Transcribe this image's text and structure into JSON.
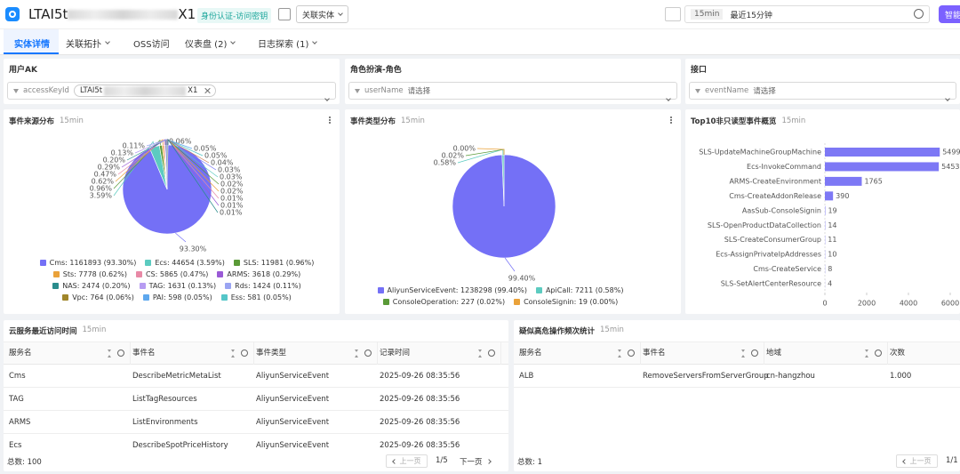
{
  "header": {
    "title_start": "LTAI5t",
    "title_end": "X1",
    "badge": "身份认证-访问密钥",
    "related_button": "关联实体",
    "time_short": "15min",
    "time_range": "最近15分钟",
    "smart_button": "智能"
  },
  "tabs": [
    "实体详情",
    "关联拓扑",
    "OSS访问",
    "仪表盘 (2)",
    "日志探索 (1)"
  ],
  "filters": [
    {
      "label": "用户AK",
      "field": "accessKeyId",
      "value_start": "LTAI5t",
      "value_end": "X1"
    },
    {
      "label": "角色扮演-角色",
      "field": "userName",
      "placeholder": "请选择"
    },
    {
      "label": "接口",
      "field": "eventName",
      "placeholder": "请选择"
    }
  ],
  "chart_data": [
    {
      "type": "pie",
      "title": "事件来源分布",
      "subtitle": "15min",
      "values": [
        93.3,
        3.59,
        0.96,
        0.62,
        0.47,
        0.29,
        0.2,
        0.13,
        0.11,
        0.06,
        0.05,
        0.05,
        0.04,
        0.03,
        0.03,
        0.02,
        0.02,
        0.01,
        0.01,
        0.01
      ],
      "value_labels": [
        "93.30%",
        "3.59%",
        "0.96%",
        "0.62%",
        "0.47%",
        "0.29%",
        "0.20%",
        "0.13%",
        "0.11%",
        "0.06%",
        "0.05%",
        "0.05%",
        "0.04%",
        "0.03%",
        "0.03%",
        "0.02%",
        "0.02%",
        "0.01%",
        "0.01%",
        "0.01%"
      ],
      "colors": [
        "#7470f6",
        "#5ccbc0",
        "#5a9a37",
        "#eaa23a",
        "#e889a6",
        "#9a5ad6",
        "#2a8c8c",
        "#b79cf2",
        "#9aa4f2",
        "#a0862a",
        "#5ea8ee",
        "#55c6c8",
        "#d07a50",
        "#7470f6",
        "#5ccbc0",
        "#5a9a37",
        "#eaa23a",
        "#e889a6",
        "#9a5ad6",
        "#2a8c8c"
      ],
      "legend": [
        "Cms: 1161893 (93.30%)",
        "Ecs: 44654 (3.59%)",
        "SLS: 11981 (0.96%)",
        "Sts: 7778 (0.62%)",
        "CS: 5865 (0.47%)",
        "ARMS: 3618 (0.29%)",
        "NAS: 2474 (0.20%)",
        "TAG: 1631 (0.13%)",
        "Rds: 1424 (0.11%)",
        "Vpc: 764 (0.06%)",
        "PAI: 598 (0.05%)",
        "Ess: 581 (0.05%)"
      ]
    },
    {
      "type": "pie",
      "title": "事件类型分布",
      "subtitle": "15min",
      "values": [
        99.4,
        0.58,
        0.02,
        0
      ],
      "value_labels": [
        "99.40%",
        "0.58%",
        "0.02%",
        "0.00%"
      ],
      "colors": [
        "#7470f6",
        "#5ccbc0",
        "#5a9a37",
        "#eaa23a"
      ],
      "legend": [
        "AliyunServiceEvent: 1238298 (99.40%)",
        "ApiCall: 7211 (0.58%)",
        "ConsoleOperation: 227 (0.02%)",
        "ConsoleSignin: 19 (0.00%)"
      ]
    },
    {
      "type": "bar",
      "orientation": "horizontal",
      "title": "Top10非只读型事件概览",
      "subtitle": "15min",
      "categories": [
        "SLS-UpdateMachineGroupMachine",
        "Ecs-InvokeCommand",
        "ARMS-CreateEnvironment",
        "Cms-CreateAddonRelease",
        "AasSub-ConsoleSignin",
        "SLS-OpenProductDataCollection",
        "SLS-CreateConsumerGroup",
        "Ecs-AssignPrivateIpAddresses",
        "Cms-CreateService",
        "SLS-SetAlertCenterResource"
      ],
      "values": [
        5499,
        5453,
        1765,
        390,
        19,
        14,
        11,
        10,
        8,
        4
      ],
      "color": "#7d78f5",
      "xlim": [
        0,
        6000
      ],
      "xticks": [
        0,
        2000,
        4000,
        6000
      ]
    }
  ],
  "tables": [
    {
      "title": "云服务最近访问时间",
      "subtitle": "15min",
      "columns": [
        "服务名",
        "事件名",
        "事件类型",
        "记录时间"
      ],
      "rows": [
        [
          "Cms",
          "DescribeMetricMetaList",
          "AliyunServiceEvent",
          "2025-09-26 08:35:56"
        ],
        [
          "TAG",
          "ListTagResources",
          "AliyunServiceEvent",
          "2025-09-26 08:35:56"
        ],
        [
          "ARMS",
          "ListEnvironments",
          "AliyunServiceEvent",
          "2025-09-26 08:35:56"
        ],
        [
          "Ecs",
          "DescribeSpotPriceHistory",
          "AliyunServiceEvent",
          "2025-09-26 08:35:56"
        ]
      ],
      "total": "总数: 100",
      "prev": "上一页",
      "page": "1/5",
      "next": "下一页"
    },
    {
      "title": "疑似高危操作频次统计",
      "subtitle": "15min",
      "columns": [
        "服务名",
        "事件名",
        "地域",
        "次数"
      ],
      "rows": [
        [
          "ALB",
          "RemoveServersFromServerGroup",
          "cn-hangzhou",
          "1.000"
        ]
      ],
      "total": "总数: 1",
      "prev": "上一页",
      "page": "1/1"
    }
  ]
}
